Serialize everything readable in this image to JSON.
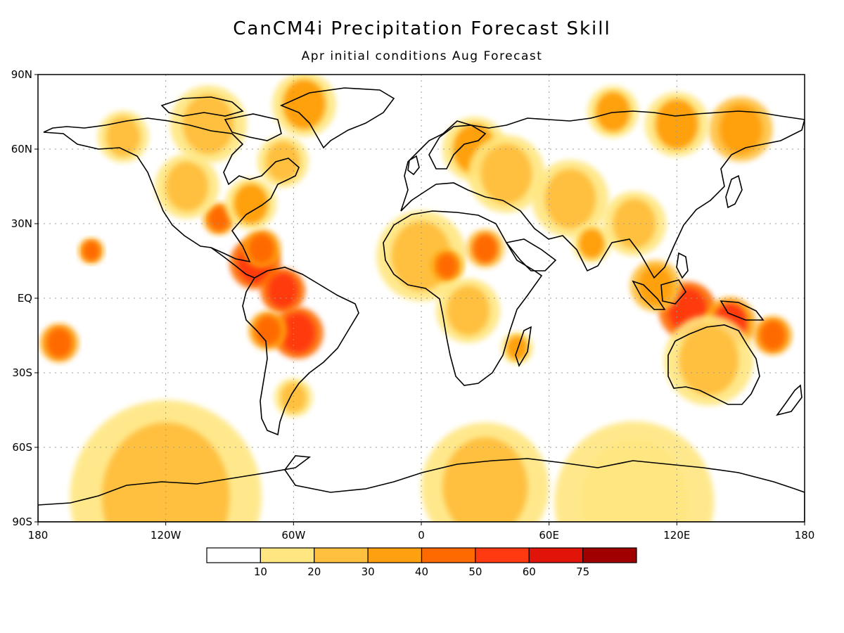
{
  "title": "CanCM4i Precipitation Forecast Skill",
  "subtitle": "Apr initial conditions   Aug Forecast",
  "map": {
    "projection": "equirectangular",
    "lon_range": [
      -180,
      180
    ],
    "lat_range": [
      -90,
      90
    ],
    "grid": true,
    "lat_ticks": [
      {
        "lat": 90,
        "label": "90N"
      },
      {
        "lat": 60,
        "label": "60N"
      },
      {
        "lat": 30,
        "label": "30N"
      },
      {
        "lat": 0,
        "label": "EQ"
      },
      {
        "lat": -30,
        "label": "30S"
      },
      {
        "lat": -60,
        "label": "60S"
      },
      {
        "lat": -90,
        "label": "90S"
      }
    ],
    "lon_ticks": [
      {
        "lon": -180,
        "label": "180"
      },
      {
        "lon": -120,
        "label": "120W"
      },
      {
        "lon": -60,
        "label": "60W"
      },
      {
        "lon": 0,
        "label": "0"
      },
      {
        "lon": 60,
        "label": "60E"
      },
      {
        "lon": 120,
        "label": "120E"
      },
      {
        "lon": 180,
        "label": "180"
      }
    ]
  },
  "colorbar": {
    "levels": [
      "10",
      "20",
      "30",
      "40",
      "50",
      "60",
      "75"
    ],
    "colors": [
      "#ffffff",
      "#ffe680",
      "#ffc040",
      "#ffa010",
      "#ff6a00",
      "#ff3a10",
      "#e01408",
      "#a00000"
    ]
  },
  "chart_data": {
    "type": "heatmap",
    "variable": "skill",
    "color_levels": [
      10,
      20,
      30,
      40,
      50,
      60,
      75
    ],
    "skill_regions": [
      {
        "lon": -78,
        "lat": 14,
        "r": 8,
        "value": 55
      },
      {
        "lon": -65,
        "lat": 3,
        "r": 7,
        "value": 55
      },
      {
        "lon": -58,
        "lat": -14,
        "r": 8,
        "value": 55
      },
      {
        "lon": -72,
        "lat": -13,
        "r": 6,
        "value": 45
      },
      {
        "lon": -75,
        "lat": 20,
        "r": 6,
        "value": 45
      },
      {
        "lon": -95,
        "lat": 32,
        "r": 5,
        "value": 45
      },
      {
        "lon": -170,
        "lat": -18,
        "r": 6,
        "value": 45
      },
      {
        "lon": -155,
        "lat": 19,
        "r": 4,
        "value": 45
      },
      {
        "lon": -80,
        "lat": 38,
        "r": 8,
        "value": 30
      },
      {
        "lon": -110,
        "lat": 45,
        "r": 10,
        "value": 25
      },
      {
        "lon": -65,
        "lat": 55,
        "r": 8,
        "value": 25
      },
      {
        "lon": -100,
        "lat": 70,
        "r": 12,
        "value": 20
      },
      {
        "lon": -55,
        "lat": 78,
        "r": 10,
        "value": 30
      },
      {
        "lon": -140,
        "lat": 65,
        "r": 8,
        "value": 25
      },
      {
        "lon": 0,
        "lat": 17,
        "r": 14,
        "value": 25
      },
      {
        "lon": 12,
        "lat": 13,
        "r": 5,
        "value": 45
      },
      {
        "lon": 30,
        "lat": 20,
        "r": 6,
        "value": 40
      },
      {
        "lon": 22,
        "lat": -5,
        "r": 10,
        "value": 20
      },
      {
        "lon": 45,
        "lat": -20,
        "r": 5,
        "value": 30
      },
      {
        "lon": 25,
        "lat": 60,
        "r": 10,
        "value": 30
      },
      {
        "lon": 40,
        "lat": 50,
        "r": 12,
        "value": 25
      },
      {
        "lon": 70,
        "lat": 40,
        "r": 12,
        "value": 20
      },
      {
        "lon": 80,
        "lat": 22,
        "r": 6,
        "value": 30
      },
      {
        "lon": 100,
        "lat": 30,
        "r": 10,
        "value": 25
      },
      {
        "lon": 150,
        "lat": 68,
        "r": 10,
        "value": 35
      },
      {
        "lon": 120,
        "lat": 70,
        "r": 10,
        "value": 30
      },
      {
        "lon": 90,
        "lat": 75,
        "r": 8,
        "value": 30
      },
      {
        "lon": 125,
        "lat": -5,
        "r": 9,
        "value": 55
      },
      {
        "lon": 145,
        "lat": -10,
        "r": 8,
        "value": 50
      },
      {
        "lon": 165,
        "lat": -15,
        "r": 6,
        "value": 45
      },
      {
        "lon": 135,
        "lat": -25,
        "r": 14,
        "value": 25
      },
      {
        "lon": 110,
        "lat": 5,
        "r": 8,
        "value": 35
      },
      {
        "lon": -60,
        "lat": -40,
        "r": 6,
        "value": 25
      },
      {
        "lon": -120,
        "lat": -80,
        "r": 30,
        "value": 20
      },
      {
        "lon": 30,
        "lat": -76,
        "r": 20,
        "value": 20
      },
      {
        "lon": 100,
        "lat": -82,
        "r": 25,
        "value": 15
      }
    ]
  }
}
